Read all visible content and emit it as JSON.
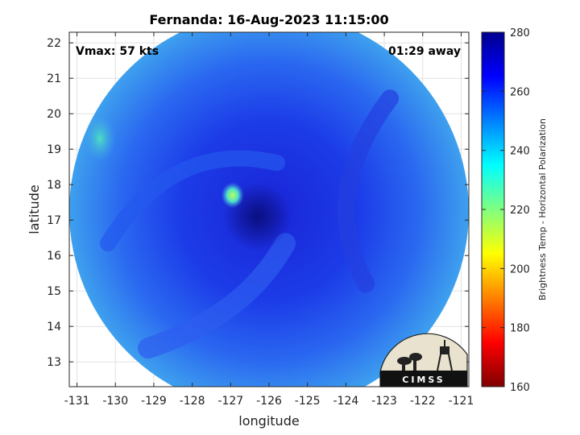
{
  "chart_data": {
    "type": "heatmap",
    "title": "Fernanda: 16-Aug-2023 11:15:00",
    "xlabel": "longitude",
    "ylabel": "latitude",
    "xlim": [
      -131.2,
      -120.8
    ],
    "ylim": [
      12.3,
      22.3
    ],
    "xticks": [
      -131,
      -130,
      -129,
      -128,
      -127,
      -126,
      -125,
      -124,
      -123,
      -122,
      -121
    ],
    "yticks": [
      13,
      14,
      15,
      16,
      17,
      18,
      19,
      20,
      21,
      22
    ],
    "grid": true,
    "annotations": {
      "vmax": "Vmax: 57 kts",
      "offset": "01:29 away"
    },
    "colorbar": {
      "label": "Brightness Temp - Horizontal Polarization",
      "range": [
        160,
        280
      ],
      "ticks": [
        160,
        180,
        200,
        220,
        240,
        260,
        280
      ],
      "colormap": [
        "#7f0000",
        "#ff0000",
        "#ff8000",
        "#ffff00",
        "#80ff80",
        "#00ffff",
        "#0080ff",
        "#0000ff",
        "#00008f"
      ]
    },
    "swath": {
      "center_lon": -126.0,
      "center_lat": 17.25,
      "background_temp": 262
    },
    "storm_center": {
      "lon": -126.3,
      "lat": 17.1,
      "temp": 272
    },
    "warm_features": [
      {
        "lon": -126.95,
        "lat": 17.7,
        "temp": 225
      },
      {
        "lon": -130.4,
        "lat": 19.3,
        "temp": 238
      }
    ]
  },
  "logo": {
    "text": "CIMSS"
  }
}
